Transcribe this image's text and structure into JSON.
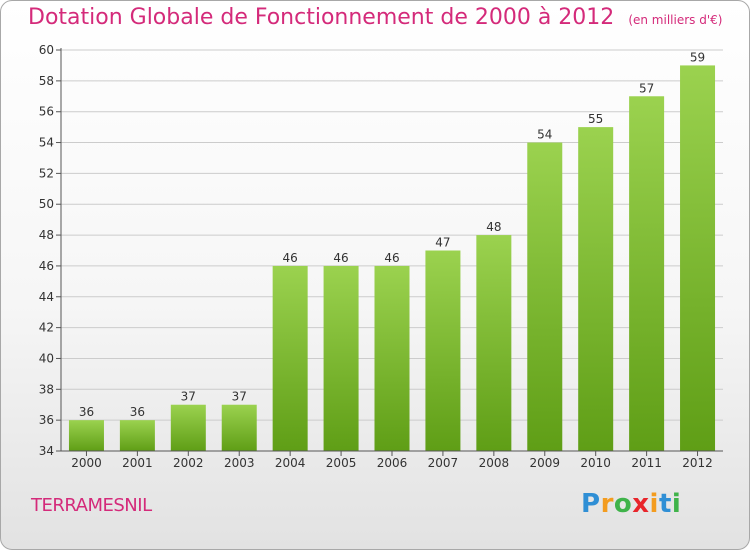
{
  "title": {
    "main": "Dotation Globale de Fonctionnement de 2000 à 2012",
    "unit": "(en milliers d'€)"
  },
  "commune": "TERRAMESNIL",
  "logo": {
    "letters": [
      "P",
      "r",
      "o",
      "x",
      "i",
      "t",
      "i"
    ],
    "colors": [
      "#2f8fd5",
      "#f39c1f",
      "#3fb34a",
      "#e8252b",
      "#f39c1f",
      "#2f8fd5",
      "#3fb34a"
    ]
  },
  "colors": {
    "accent": "#d42a7a",
    "bar_top": "#9bd24f",
    "bar_bottom": "#5f9e16",
    "grid": "#cccccc",
    "axis": "#555555"
  },
  "chart_data": {
    "type": "bar",
    "categories": [
      "2000",
      "2001",
      "2002",
      "2003",
      "2004",
      "2005",
      "2006",
      "2007",
      "2008",
      "2009",
      "2010",
      "2011",
      "2012"
    ],
    "values": [
      36,
      36,
      37,
      37,
      46,
      46,
      46,
      47,
      48,
      54,
      55,
      57,
      59
    ],
    "data_labels": [
      "36",
      "36",
      "37",
      "37",
      "46",
      "46",
      "46",
      "47",
      "48",
      "54",
      "55",
      "57",
      "59"
    ],
    "y_ticks": [
      "34",
      "36",
      "38",
      "40",
      "42",
      "44",
      "46",
      "48",
      "50",
      "52",
      "54",
      "56",
      "58",
      "60"
    ],
    "ylim": [
      34,
      60
    ],
    "grid": true
  }
}
